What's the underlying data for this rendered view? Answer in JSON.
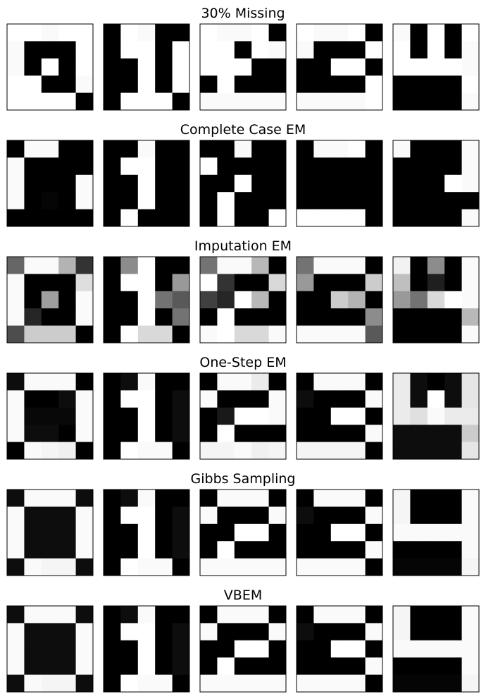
{
  "chart_data": {
    "type": "heatmap",
    "colormap": "gray_r",
    "value_range": [
      0,
      1
    ],
    "grid_shape": [
      5,
      5
    ],
    "panels": [
      {
        "title": "30% Missing",
        "images": [
          [
            [
              0,
              0,
              0.02,
              0,
              0
            ],
            [
              0.02,
              1,
              1,
              1,
              0
            ],
            [
              0.02,
              1,
              0,
              1,
              0
            ],
            [
              0,
              0,
              1,
              1,
              0.02
            ],
            [
              0,
              0,
              0,
              0,
              1
            ]
          ],
          [
            [
              1,
              0,
              0.02,
              1,
              1
            ],
            [
              1,
              0,
              0,
              1,
              0
            ],
            [
              1,
              1,
              0,
              1,
              0
            ],
            [
              1,
              1,
              0,
              1,
              0
            ],
            [
              1,
              0,
              0,
              0,
              1
            ]
          ],
          [
            [
              0,
              0.02,
              0.02,
              0,
              1
            ],
            [
              0,
              0,
              1,
              0,
              0.02
            ],
            [
              0,
              0,
              0,
              1,
              1
            ],
            [
              1,
              0,
              1,
              1,
              1
            ],
            [
              0.02,
              0.02,
              0.02,
              0.02,
              0.02
            ]
          ],
          [
            [
              0,
              0.02,
              0.02,
              0,
              1
            ],
            [
              0.02,
              1,
              1,
              1,
              0
            ],
            [
              1,
              1,
              0,
              0,
              1
            ],
            [
              1,
              1,
              1,
              1,
              0
            ],
            [
              0.02,
              0.02,
              0.02,
              0.02,
              0
            ]
          ],
          [
            [
              0.02,
              1,
              0,
              1,
              0
            ],
            [
              0,
              1,
              0,
              1,
              0.02
            ],
            [
              0,
              0,
              0,
              0,
              0.02
            ],
            [
              1,
              1,
              1,
              1,
              0
            ],
            [
              1,
              1,
              1,
              1,
              0.02
            ]
          ]
        ]
      },
      {
        "title": "Complete Case EM",
        "images": [
          [
            [
              1,
              0.02,
              0.02,
              1,
              1
            ],
            [
              0.02,
              1,
              1,
              1,
              1
            ],
            [
              0.02,
              1,
              1,
              1,
              0.02
            ],
            [
              0.02,
              1,
              0.98,
              1,
              0.02
            ],
            [
              1,
              1,
              1,
              1,
              1
            ]
          ],
          [
            [
              1,
              1,
              0.02,
              1,
              1
            ],
            [
              1,
              0,
              0,
              1,
              1
            ],
            [
              1,
              1,
              0,
              1,
              1
            ],
            [
              1,
              1,
              0,
              1,
              1
            ],
            [
              1,
              0,
              1,
              1,
              1
            ]
          ],
          [
            [
              1,
              1,
              0.02,
              1,
              1
            ],
            [
              0,
              1,
              1,
              1,
              1
            ],
            [
              1,
              1,
              0,
              1,
              1
            ],
            [
              1,
              0,
              1,
              1,
              1
            ],
            [
              1,
              0,
              1,
              1,
              0
            ]
          ],
          [
            [
              1,
              0.02,
              0.02,
              0,
              1
            ],
            [
              1,
              1,
              1,
              1,
              1
            ],
            [
              1,
              1,
              1,
              1,
              1
            ],
            [
              1,
              1,
              1,
              1,
              1
            ],
            [
              0,
              0,
              0,
              0,
              1
            ]
          ],
          [
            [
              0.02,
              1,
              1,
              1,
              0.02
            ],
            [
              1,
              1,
              1,
              1,
              0.02
            ],
            [
              1,
              1,
              1,
              0,
              0.02
            ],
            [
              1,
              1,
              1,
              1,
              1
            ],
            [
              1,
              1,
              1,
              1,
              0.02
            ]
          ]
        ]
      },
      {
        "title": "Imputation EM",
        "images": [
          [
            [
              0.6,
              0.02,
              0.02,
              0.3,
              0.8
            ],
            [
              0.02,
              1,
              1,
              1,
              0.13
            ],
            [
              0.02,
              1,
              0.38,
              1,
              0.02
            ],
            [
              0.02,
              0.85,
              1,
              1,
              0.02
            ],
            [
              0.7,
              0.2,
              0.2,
              0.2,
              1
            ]
          ],
          [
            [
              1,
              0.45,
              0,
              1,
              1
            ],
            [
              1,
              0,
              0,
              1,
              0.4
            ],
            [
              1,
              1,
              0,
              0.55,
              0.65
            ],
            [
              1,
              1,
              0,
              1,
              0.55
            ],
            [
              1,
              0,
              0.15,
              0.15,
              1
            ]
          ],
          [
            [
              0.55,
              0.02,
              0.02,
              0.28,
              1
            ],
            [
              0,
              0.8,
              1,
              1,
              0.15
            ],
            [
              0.75,
              0.85,
              0,
              0.28,
              1
            ],
            [
              1,
              0,
              1,
              1,
              1
            ],
            [
              0.02,
              0,
              0.15,
              0.15,
              0.02
            ]
          ],
          [
            [
              0.55,
              0.02,
              0.02,
              0.02,
              1
            ],
            [
              0.4,
              1,
              1,
              1,
              0.2
            ],
            [
              1,
              1,
              0.2,
              0.3,
              1
            ],
            [
              1,
              1,
              1,
              1,
              0.45
            ],
            [
              0.02,
              0.02,
              0.02,
              0.02,
              0.65
            ]
          ],
          [
            [
              0.05,
              1,
              0.45,
              1,
              0.02
            ],
            [
              0.25,
              1,
              0.88,
              1,
              0.02
            ],
            [
              0.4,
              0.55,
              0.15,
              0,
              0.02
            ],
            [
              1,
              1,
              1,
              1,
              0.28
            ],
            [
              1,
              1,
              1,
              1,
              0.02
            ]
          ]
        ]
      },
      {
        "title": "One-Step EM",
        "images": [
          [
            [
              0.95,
              0.02,
              0.02,
              0.02,
              1
            ],
            [
              0.02,
              1,
              1,
              0.95,
              0.02
            ],
            [
              0.02,
              0.97,
              0.97,
              0.97,
              0.02
            ],
            [
              0.02,
              0.95,
              0.95,
              1,
              0.02
            ],
            [
              1,
              0.02,
              0.04,
              0.06,
              1
            ]
          ],
          [
            [
              1,
              0.95,
              0.02,
              1,
              1
            ],
            [
              1,
              0,
              0,
              1,
              0.95
            ],
            [
              1,
              1,
              0,
              1,
              0.95
            ],
            [
              1,
              1,
              0,
              1,
              0.95
            ],
            [
              1,
              0,
              0.02,
              0.02,
              1
            ]
          ],
          [
            [
              1,
              0.02,
              0.02,
              0.08,
              1
            ],
            [
              0.02,
              1,
              1,
              1,
              0.02
            ],
            [
              1,
              0.9,
              0,
              0,
              0.02
            ],
            [
              1,
              0,
              1,
              1,
              1
            ],
            [
              0.04,
              0.04,
              0.02,
              0.06,
              0.04
            ]
          ],
          [
            [
              1,
              0.02,
              0.02,
              0.02,
              1
            ],
            [
              0.95,
              1,
              1,
              1,
              0.02
            ],
            [
              1,
              1,
              0,
              0,
              1
            ],
            [
              1,
              1,
              1,
              1,
              0.02
            ],
            [
              0.04,
              0.04,
              0.04,
              0.04,
              1
            ]
          ],
          [
            [
              0.08,
              0.95,
              1,
              0.95,
              0.1
            ],
            [
              0.08,
              0.95,
              0,
              0.95,
              0.1
            ],
            [
              0.08,
              0.12,
              0.02,
              0.08,
              0.08
            ],
            [
              0.95,
              0.95,
              0.95,
              0.95,
              0.2
            ],
            [
              0.95,
              0.95,
              0.95,
              0.95,
              0.1
            ]
          ]
        ]
      },
      {
        "title": "Gibbs Sampling",
        "images": [
          [
            [
              0.95,
              0.02,
              0.02,
              0.02,
              0.95
            ],
            [
              0.02,
              0.95,
              0.95,
              0.95,
              0.02
            ],
            [
              0.02,
              0.95,
              0.95,
              0.95,
              0.02
            ],
            [
              0.02,
              0.95,
              0.95,
              0.95,
              0.02
            ],
            [
              0.95,
              0.02,
              0.04,
              0.04,
              0.95
            ]
          ],
          [
            [
              1,
              0.95,
              0.02,
              1,
              1
            ],
            [
              1,
              0,
              0,
              1,
              0.95
            ],
            [
              1,
              1,
              0,
              1,
              0.95
            ],
            [
              1,
              1,
              0,
              1,
              0.95
            ],
            [
              1,
              0,
              0.02,
              0.02,
              1
            ]
          ],
          [
            [
              1,
              0.02,
              0.02,
              0.02,
              1
            ],
            [
              0.02,
              1,
              1,
              1,
              0.02
            ],
            [
              1,
              1,
              0,
              0,
              1
            ],
            [
              1,
              0,
              1,
              1,
              1
            ],
            [
              0.02,
              0.02,
              0.02,
              0.02,
              0.02
            ]
          ],
          [
            [
              1,
              0.02,
              0.02,
              0.02,
              1
            ],
            [
              0.95,
              1,
              1,
              1,
              0.02
            ],
            [
              1,
              1,
              0,
              0,
              1
            ],
            [
              1,
              1,
              1,
              1,
              0.02
            ],
            [
              0.02,
              0.02,
              0.02,
              0.02,
              1
            ]
          ],
          [
            [
              0.04,
              1,
              1,
              1,
              0.02
            ],
            [
              0.04,
              1,
              1,
              1,
              0.02
            ],
            [
              0.02,
              0.02,
              0.02,
              0.02,
              0.02
            ],
            [
              1,
              1,
              1,
              1,
              0.02
            ],
            [
              0.98,
              0.98,
              0.98,
              0.98,
              0.04
            ]
          ]
        ]
      },
      {
        "title": "VBEM",
        "images": [
          [
            [
              0.95,
              0.02,
              0.02,
              0.02,
              0.95
            ],
            [
              0.02,
              0.95,
              0.95,
              0.95,
              0.02
            ],
            [
              0.02,
              0.95,
              0.95,
              0.95,
              0.02
            ],
            [
              0.02,
              0.95,
              0.95,
              0.95,
              0.02
            ],
            [
              0.95,
              0.02,
              0.04,
              0.04,
              0.95
            ]
          ],
          [
            [
              1,
              0.95,
              0.02,
              1,
              1
            ],
            [
              1,
              0,
              0,
              1,
              0.95
            ],
            [
              1,
              1,
              0,
              1,
              0.95
            ],
            [
              1,
              1,
              0,
              1,
              0.95
            ],
            [
              1,
              0,
              0.02,
              0.02,
              1
            ]
          ],
          [
            [
              1,
              0.02,
              0.02,
              0.02,
              1
            ],
            [
              0.02,
              1,
              1,
              1,
              0.02
            ],
            [
              1,
              1,
              0,
              0,
              1
            ],
            [
              1,
              0,
              1,
              1,
              1
            ],
            [
              0.02,
              0.02,
              0.02,
              0.02,
              0.02
            ]
          ],
          [
            [
              1,
              0.02,
              0.02,
              0.02,
              1
            ],
            [
              0.95,
              1,
              1,
              1,
              0.02
            ],
            [
              1,
              1,
              0,
              0,
              1
            ],
            [
              1,
              1,
              1,
              1,
              0.02
            ],
            [
              0.02,
              0.02,
              0.02,
              0.02,
              1
            ]
          ],
          [
            [
              0.04,
              1,
              1,
              1,
              0.02
            ],
            [
              0.04,
              1,
              1,
              1,
              0.02
            ],
            [
              0.02,
              0.02,
              0.02,
              0.02,
              0.02
            ],
            [
              1,
              1,
              1,
              1,
              0.02
            ],
            [
              0.98,
              0.98,
              0.98,
              0.98,
              0.04
            ]
          ]
        ]
      }
    ]
  }
}
